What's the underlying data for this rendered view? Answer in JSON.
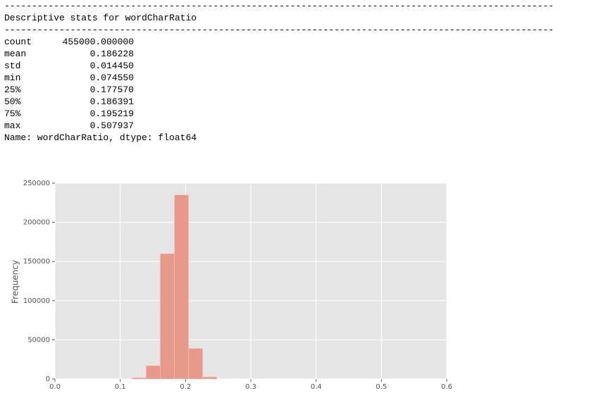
{
  "output": {
    "rules": [
      "----------------------------------------------------------------------------------------------------",
      "----------------------------------------------------------------------------------------------------"
    ],
    "heading": "Descriptive stats for wordCharRatio",
    "stats": [
      [
        "count",
        "455000.000000"
      ],
      [
        "mean",
        "0.186228"
      ],
      [
        "std",
        "0.014450"
      ],
      [
        "min",
        "0.074550"
      ],
      [
        "25%",
        "0.177570"
      ],
      [
        "50%",
        "0.186391"
      ],
      [
        "75%",
        "0.195219"
      ],
      [
        "max",
        "0.507937"
      ]
    ],
    "footer": "Name: wordCharRatio, dtype: float64"
  },
  "chart_data": {
    "type": "histogram",
    "y_label": "Frequency",
    "bins": [
      0.0746,
      0.0962,
      0.1179,
      0.1396,
      0.1612,
      0.1829,
      0.2046,
      0.2262,
      0.2479,
      0.2696,
      0.2912,
      0.3129,
      0.3346,
      0.3562,
      0.3779,
      0.3996,
      0.4212,
      0.4429,
      0.4646,
      0.4862,
      0.5079
    ],
    "counts": [
      0,
      0,
      1500,
      17000,
      160000,
      235000,
      39000,
      2500,
      0,
      0,
      0,
      0,
      0,
      0,
      0,
      0,
      0,
      0,
      0,
      0
    ],
    "color": "#e9998a",
    "xlim": [
      0,
      0.6
    ],
    "xticks": [
      {
        "value": 0,
        "label": "0.0"
      },
      0.1,
      0.2,
      0.3,
      0.4,
      0.5,
      0.6
    ],
    "ylim": [
      0,
      250000
    ],
    "yticks": [
      0,
      50000,
      100000,
      150000,
      200000,
      250000
    ],
    "grid": true
  }
}
